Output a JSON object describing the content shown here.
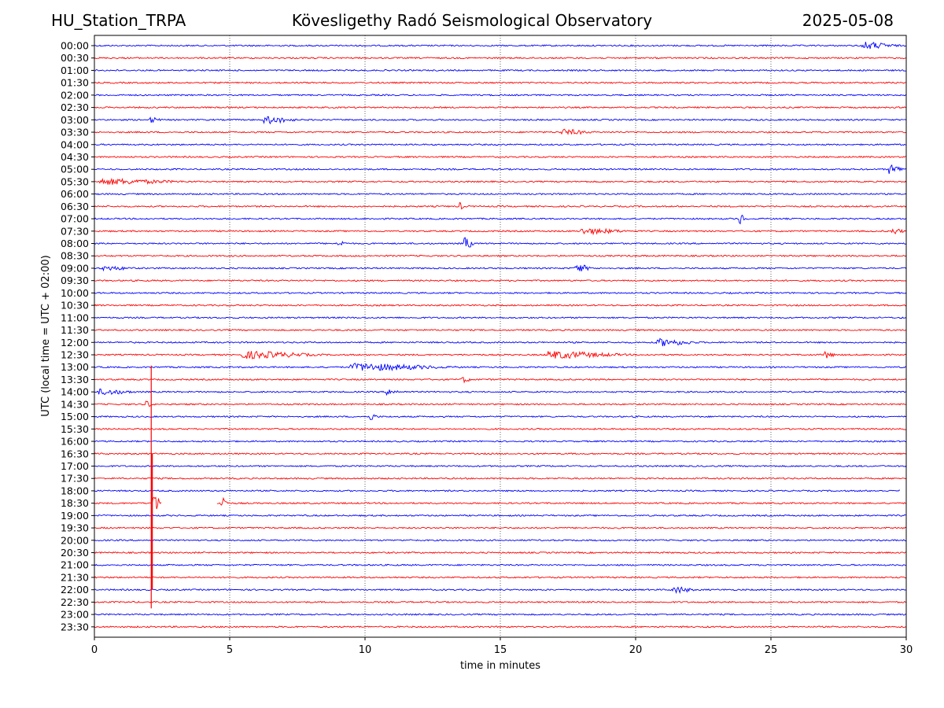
{
  "header": {
    "station": "HU_Station_TRPA",
    "observatory": "Kövesligethy Radó Seismological Observatory",
    "date": "2025-05-08"
  },
  "chart_data": {
    "type": "line",
    "title": "Kövesligethy Radó Seismological Observatory",
    "xlabel": "time in minutes",
    "ylabel": "UTC (local time = UTC + 02:00)",
    "xlim": [
      0,
      30
    ],
    "x_ticks": [
      0,
      5,
      10,
      15,
      20,
      25,
      30
    ],
    "grid": "vertical dotted at x ticks",
    "row_labels": [
      "00:00",
      "00:30",
      "01:00",
      "01:30",
      "02:00",
      "02:30",
      "03:00",
      "03:30",
      "04:00",
      "04:30",
      "05:00",
      "05:30",
      "06:00",
      "06:30",
      "07:00",
      "07:30",
      "08:00",
      "08:30",
      "09:00",
      "09:30",
      "10:00",
      "10:30",
      "11:00",
      "11:30",
      "12:00",
      "12:30",
      "13:00",
      "13:30",
      "14:00",
      "14:30",
      "15:00",
      "15:30",
      "16:00",
      "16:30",
      "17:00",
      "17:30",
      "18:00",
      "18:30",
      "19:00",
      "19:30",
      "20:00",
      "20:30",
      "21:00",
      "21:30",
      "22:00",
      "22:30",
      "23:00",
      "23:30"
    ],
    "colors": {
      "even_rows": "#0000ff",
      "odd_rows": "#ff0000"
    },
    "events": [
      {
        "row": 0,
        "t": 28.4,
        "duration": 1.4,
        "amplitude": 5
      },
      {
        "row": 6,
        "t": 2.1,
        "duration": 0.4,
        "amplitude": 4
      },
      {
        "row": 6,
        "t": 6.3,
        "duration": 1.3,
        "amplitude": 5
      },
      {
        "row": 7,
        "t": 17.3,
        "duration": 1.2,
        "amplitude": 4
      },
      {
        "row": 10,
        "t": 29.4,
        "duration": 0.6,
        "amplitude": 6
      },
      {
        "row": 11,
        "t": 0.2,
        "duration": 3.5,
        "amplitude": 4
      },
      {
        "row": 13,
        "t": 13.5,
        "duration": 0.2,
        "amplitude": 5
      },
      {
        "row": 14,
        "t": 23.8,
        "duration": 0.3,
        "amplitude": 8
      },
      {
        "row": 15,
        "t": 18.0,
        "duration": 2.0,
        "amplitude": 4
      },
      {
        "row": 15,
        "t": 29.5,
        "duration": 0.5,
        "amplitude": 4
      },
      {
        "row": 16,
        "t": 13.7,
        "duration": 0.3,
        "amplitude": 9
      },
      {
        "row": 16,
        "t": 9.0,
        "duration": 0.3,
        "amplitude": 5
      },
      {
        "row": 18,
        "t": 17.8,
        "duration": 0.6,
        "amplitude": 6
      },
      {
        "row": 18,
        "t": 0.3,
        "duration": 1.5,
        "amplitude": 3
      },
      {
        "row": 24,
        "t": 20.8,
        "duration": 1.6,
        "amplitude": 5
      },
      {
        "row": 25,
        "t": 5.5,
        "duration": 3.0,
        "amplitude": 5
      },
      {
        "row": 25,
        "t": 16.8,
        "duration": 3.0,
        "amplitude": 5
      },
      {
        "row": 25,
        "t": 27.0,
        "duration": 0.4,
        "amplitude": 5
      },
      {
        "row": 26,
        "t": 9.5,
        "duration": 4.0,
        "amplitude": 5
      },
      {
        "row": 27,
        "t": 13.6,
        "duration": 0.4,
        "amplitude": 4
      },
      {
        "row": 28,
        "t": 0.2,
        "duration": 1.5,
        "amplitude": 4
      },
      {
        "row": 28,
        "t": 10.8,
        "duration": 0.6,
        "amplitude": 4
      },
      {
        "row": 29,
        "t": 1.9,
        "duration": 0.3,
        "amplitude": 5
      },
      {
        "row": 30,
        "t": 10.2,
        "duration": 0.3,
        "amplitude": 5
      },
      {
        "row": 37,
        "t": 2.2,
        "duration": 0.3,
        "amplitude": 12
      },
      {
        "row": 37,
        "t": 4.7,
        "duration": 0.2,
        "amplitude": 12
      },
      {
        "row": 44,
        "t": 21.4,
        "duration": 0.8,
        "amplitude": 5
      }
    ],
    "gaps": [
      {
        "row": 36,
        "from": 29.8,
        "to": 30
      },
      {
        "row": 37,
        "from": 2.5,
        "to": 4.5
      }
    ],
    "spikes": [
      {
        "t": 2.1,
        "from_row": 26,
        "to_row": 45,
        "color": "#ff0000"
      }
    ]
  }
}
